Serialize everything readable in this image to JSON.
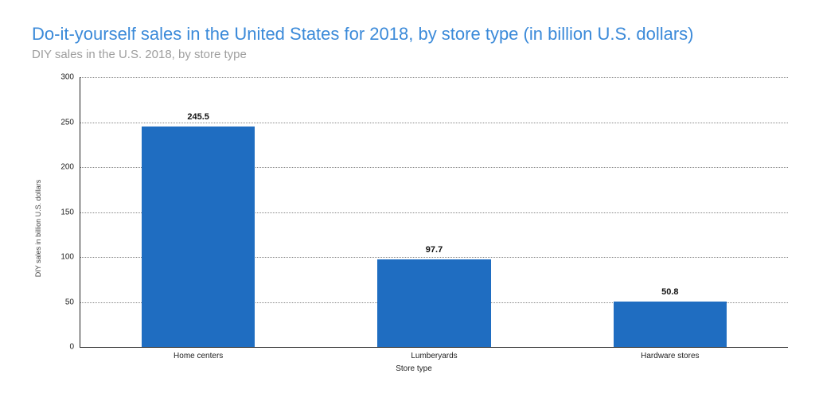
{
  "header": {
    "title": "Do-it-yourself sales in the United States for 2018, by store type (in billion U.S. dollars)",
    "title_color": "#3b8ad9",
    "title_fontsize": 22,
    "subtitle": "DIY sales in the U.S. 2018, by store type",
    "subtitle_color": "#9e9e9e",
    "subtitle_fontsize": 15
  },
  "chart": {
    "type": "bar",
    "categories": [
      "Home centers",
      "Lumberyards",
      "Hardware stores"
    ],
    "values": [
      245.5,
      97.7,
      50.8
    ],
    "value_labels": [
      "245.5",
      "97.7",
      "50.8"
    ],
    "bar_color": "#1f6dc1",
    "bar_width": 0.48,
    "ylim": [
      0,
      300
    ],
    "ytick_step": 50,
    "yticks": [
      0,
      50,
      100,
      150,
      200,
      250,
      300
    ],
    "ylabel": "DIY sales in billion U.S. dollars",
    "xlabel": "Store type",
    "grid_color": "#888888",
    "grid_style": "dotted",
    "axis_color": "#222222",
    "background_color": "#ffffff",
    "label_fontsize": 10,
    "value_label_fontsize": 11,
    "value_label_weight": "700"
  }
}
